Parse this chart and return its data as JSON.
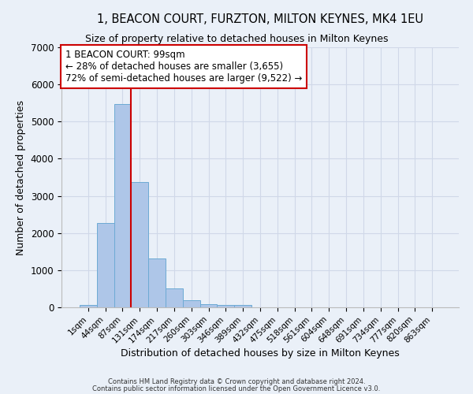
{
  "title": "1, BEACON COURT, FURZTON, MILTON KEYNES, MK4 1EU",
  "subtitle": "Size of property relative to detached houses in Milton Keynes",
  "xlabel": "Distribution of detached houses by size in Milton Keynes",
  "ylabel": "Number of detached properties",
  "footnote1": "Contains HM Land Registry data © Crown copyright and database right 2024.",
  "footnote2": "Contains public sector information licensed under the Open Government Licence v3.0.",
  "bar_labels": [
    "1sqm",
    "44sqm",
    "87sqm",
    "131sqm",
    "174sqm",
    "217sqm",
    "260sqm",
    "303sqm",
    "346sqm",
    "389sqm",
    "432sqm",
    "475sqm",
    "518sqm",
    "561sqm",
    "604sqm",
    "648sqm",
    "691sqm",
    "734sqm",
    "777sqm",
    "820sqm",
    "863sqm"
  ],
  "bar_values": [
    70,
    2270,
    5470,
    3370,
    1310,
    510,
    190,
    90,
    55,
    55,
    0,
    0,
    0,
    0,
    0,
    0,
    0,
    0,
    0,
    0,
    0
  ],
  "bar_color": "#aec6e8",
  "bar_edge_color": "#6daad4",
  "grid_color": "#d0d8e8",
  "bg_color": "#eaf0f8",
  "vline_color": "#cc0000",
  "vline_x_index": 2.5,
  "annotation_text": "1 BEACON COURT: 99sqm\n← 28% of detached houses are smaller (3,655)\n72% of semi-detached houses are larger (9,522) →",
  "annotation_box_color": "#ffffff",
  "annotation_box_edge": "#cc0000",
  "ylim": [
    0,
    7000
  ],
  "yticks": [
    0,
    1000,
    2000,
    3000,
    4000,
    5000,
    6000,
    7000
  ]
}
